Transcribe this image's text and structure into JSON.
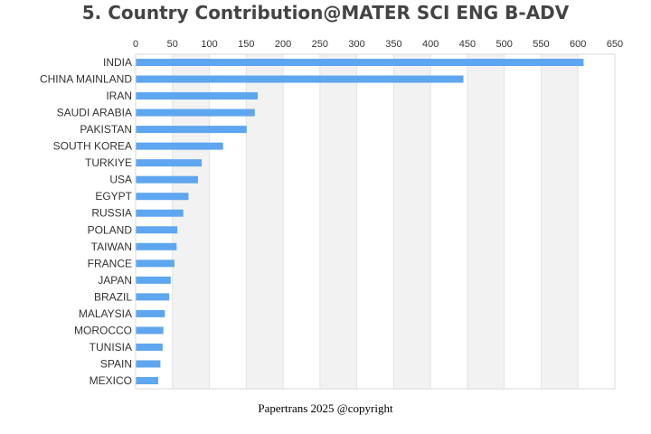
{
  "chart_data": {
    "type": "bar",
    "orientation": "horizontal",
    "title": "5. Country Contribution@MATER SCI ENG B-ADV",
    "categories": [
      "INDIA",
      "CHINA MAINLAND",
      "IRAN",
      "SAUDI ARABIA",
      "PAKISTAN",
      "SOUTH KOREA",
      "TURKIYE",
      "USA",
      "EGYPT",
      "RUSSIA",
      "POLAND",
      "TAIWAN",
      "FRANCE",
      "JAPAN",
      "BRAZIL",
      "MALAYSIA",
      "MOROCCO",
      "TUNISIA",
      "SPAIN",
      "MEXICO"
    ],
    "values": [
      607,
      444,
      165,
      161,
      150,
      118,
      89,
      84,
      71,
      64,
      56,
      55,
      52,
      47,
      45,
      39,
      37,
      36,
      33,
      30
    ],
    "xlim": [
      0,
      650
    ],
    "xticks": [
      0,
      50,
      100,
      150,
      200,
      250,
      300,
      350,
      400,
      450,
      500,
      550,
      600,
      650
    ],
    "xaxis_position": "top",
    "bar_color": "#5ea6ef",
    "band_color": "#f2f2f2",
    "xlabel": "",
    "ylabel": ""
  },
  "footer": {
    "text": "Papertrans 2025 @copyright"
  }
}
